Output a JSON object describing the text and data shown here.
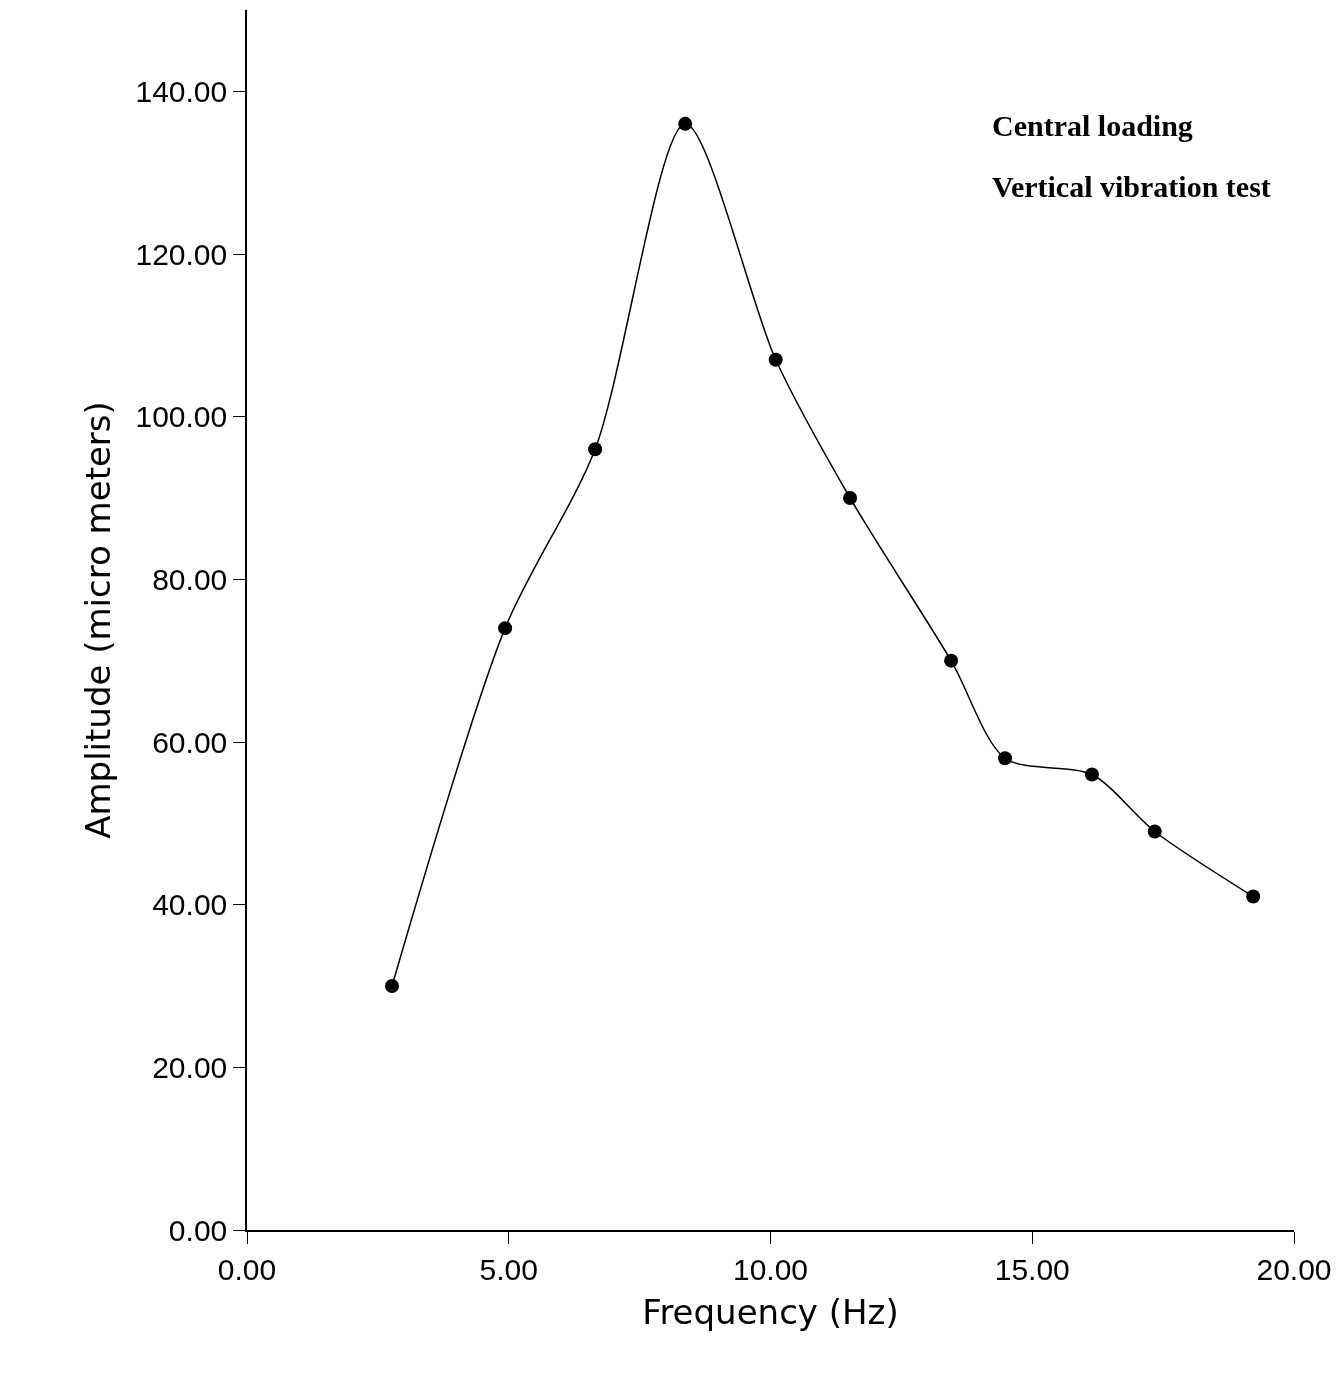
{
  "chart_data": {
    "type": "line",
    "xlabel": "Frequency (Hz)",
    "ylabel": "Amplitude (micro meters)",
    "x": [
      2.77,
      4.93,
      6.65,
      8.37,
      10.1,
      11.52,
      13.45,
      14.48,
      16.14,
      17.34,
      19.22
    ],
    "series": [
      {
        "color": "#000000",
        "values": [
          30,
          74,
          96,
          136,
          107,
          90,
          70,
          58,
          56,
          49,
          41
        ]
      }
    ],
    "xlim": [
      0,
      20
    ],
    "ylim": [
      0,
      150
    ],
    "xticks": [
      {
        "value": 0,
        "label": "0.00"
      },
      {
        "value": 5,
        "label": "5.00"
      },
      {
        "value": 10,
        "label": "10.00"
      },
      {
        "value": 15,
        "label": "15.00"
      },
      {
        "value": 20,
        "label": "20.00"
      }
    ],
    "yticks": [
      {
        "value": 0,
        "label": "0.00"
      },
      {
        "value": 20,
        "label": "20.00"
      },
      {
        "value": 40,
        "label": "40.00"
      },
      {
        "value": 60,
        "label": "60.00"
      },
      {
        "value": 80,
        "label": "80.00"
      },
      {
        "value": 100,
        "label": "100.00"
      },
      {
        "value": 120,
        "label": "120.00"
      },
      {
        "value": 140,
        "label": "140.00"
      }
    ],
    "annotations": [
      "Central loading",
      "Vertical vibration test"
    ],
    "marker": "circle",
    "line_style": "solid"
  }
}
